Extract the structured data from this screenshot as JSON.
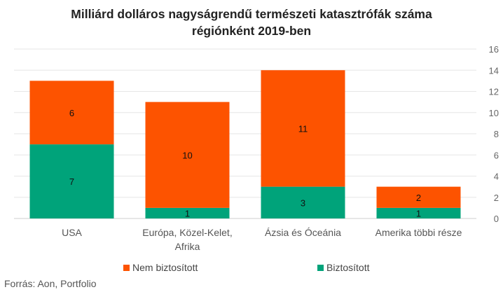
{
  "chart_data": {
    "type": "bar",
    "stacked": true,
    "title_lines": [
      "Milliárd dolláros nagyságrendű természeti katasztrófák száma",
      "régiónként 2019-ben"
    ],
    "categories": [
      [
        "USA"
      ],
      [
        "Európa, Közel-Kelet,",
        "Afrika"
      ],
      [
        "Ázsia és Óceánia"
      ],
      [
        "Amerika többi része"
      ]
    ],
    "series": [
      {
        "name": "Biztosított",
        "color": "#00a37a",
        "values": [
          7,
          1,
          3,
          1
        ]
      },
      {
        "name": "Nem biztosított",
        "color": "#fd5300",
        "values": [
          6,
          10,
          11,
          2
        ]
      }
    ],
    "ylim": [
      0,
      16
    ],
    "yticks": [
      0,
      2,
      4,
      6,
      8,
      10,
      12,
      14,
      16
    ],
    "y_axis_side": "right",
    "grid": true,
    "legend_position": "bottom",
    "source": "Forrás: Aon, Portfolio"
  }
}
